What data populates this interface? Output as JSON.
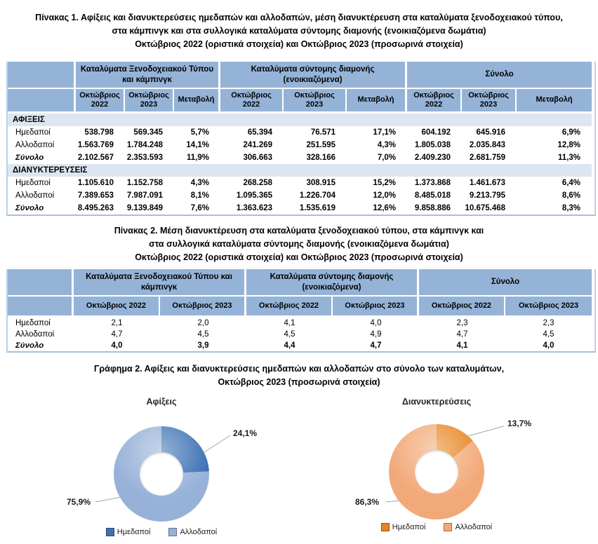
{
  "table1": {
    "title_lines": [
      "Πίνακας 1. Αφίξεις και διανυκτερεύσεις ημεδαπών και αλλοδαπών, μέση διανυκτέρευση στα καταλύματα ξενοδοχειακού τύπου,",
      "στα κάμπινγκ και στα συλλογικά καταλύματα σύντομης διαμονής (ενοικιαζόμενα δωμάτια)",
      "Οκτώβριος 2022 (οριστικά στοιχεία) και Οκτώβριος 2023 (προσωρινά στοιχεία)"
    ],
    "groups": [
      "Καταλύματα Ξενοδοχειακού Τύπου και κάμπινγκ",
      "Καταλύματα σύντομης διαμονής (ενοικιαζόμενα)",
      "Σύνολο"
    ],
    "subheaders": [
      "Οκτώβριος 2022",
      "Οκτώβριος 2023",
      "Μεταβολή"
    ],
    "sections": [
      {
        "label": "ΑΦΙΞΕΙΣ",
        "rows": [
          {
            "label": "Ημεδαποί",
            "total": false,
            "values": [
              "538.798",
              "569.345",
              "5,7%",
              "65.394",
              "76.571",
              "17,1%",
              "604.192",
              "645.916",
              "6,9%"
            ]
          },
          {
            "label": "Αλλοδαποί",
            "total": false,
            "values": [
              "1.563.769",
              "1.784.248",
              "14,1%",
              "241.269",
              "251.595",
              "4,3%",
              "1.805.038",
              "2.035.843",
              "12,8%"
            ]
          },
          {
            "label": "Σύνολο",
            "total": true,
            "values": [
              "2.102.567",
              "2.353.593",
              "11,9%",
              "306.663",
              "328.166",
              "7,0%",
              "2.409.230",
              "2.681.759",
              "11,3%"
            ]
          }
        ]
      },
      {
        "label": "ΔΙΑΝΥΚΤΕΡΕΥΣΕΙΣ",
        "rows": [
          {
            "label": "Ημεδαποί",
            "total": false,
            "values": [
              "1.105.610",
              "1.152.758",
              "4,3%",
              "268.258",
              "308.915",
              "15,2%",
              "1.373.868",
              "1.461.673",
              "6,4%"
            ]
          },
          {
            "label": "Αλλοδαποί",
            "total": false,
            "values": [
              "7.389.653",
              "7.987.091",
              "8,1%",
              "1.095.365",
              "1.226.704",
              "12,0%",
              "8.485.018",
              "9.213.795",
              "8,6%"
            ]
          },
          {
            "label": "Σύνολο",
            "total": true,
            "values": [
              "8.495.263",
              "9.139.849",
              "7,6%",
              "1.363.623",
              "1.535.619",
              "12,6%",
              "9.858.886",
              "10.675.468",
              "8,3%"
            ]
          }
        ]
      }
    ]
  },
  "table2": {
    "title_lines": [
      "Πίνακας 2. Μέση διανυκτέρευση στα καταλύματα ξενοδοχειακού τύπου, στα κάμπινγκ και",
      "στα συλλογικά καταλύματα σύντομης διαμονής (ενοικιαζόμενα δωμάτια)",
      "Οκτώβριος 2022 (οριστικά στοιχεία) και Οκτώβριος 2023 (προσωρινά στοιχεία)"
    ],
    "groups": [
      "Καταλύματα Ξενοδοχειακού Τύπου και κάμπινγκ",
      "Καταλύματα σύντομης διαμονής (ενοικιαζόμενα)",
      "Σύνολο"
    ],
    "subheaders": [
      "Οκτώβριος 2022",
      "Οκτώβριος 2023"
    ],
    "rows": [
      {
        "label": "Ημεδαποί",
        "total": false,
        "values": [
          "2,1",
          "2,0",
          "4,1",
          "4,0",
          "2,3",
          "2,3"
        ]
      },
      {
        "label": "Αλλοδαποί",
        "total": false,
        "values": [
          "4,7",
          "4,5",
          "4,5",
          "4,9",
          "4,7",
          "4,5"
        ]
      },
      {
        "label": "Σύνολο",
        "total": true,
        "values": [
          "4,0",
          "3,9",
          "4,4",
          "4,7",
          "4,1",
          "4,0"
        ]
      }
    ]
  },
  "chart_section": {
    "title_lines": [
      "Γράφημα 2. Αφίξεις και διανυκτερεύσεις ημεδαπών και αλλοδαπών στο σύνολο των καταλυμάτων,",
      "Οκτώβριος 2023 (προσωρινά στοιχεία)"
    ]
  },
  "chart_data": [
    {
      "type": "pie",
      "subtype": "donut",
      "title": "Αφίξεις",
      "labels": [
        "Ημεδαποί",
        "Αλλοδαποί"
      ],
      "values": [
        24.1,
        75.9
      ],
      "value_labels": [
        "24,1%",
        "75,9%"
      ],
      "colors": [
        "#3C72B4",
        "#97B1D8"
      ],
      "legend_position": "bottom"
    },
    {
      "type": "pie",
      "subtype": "donut",
      "title": "Διανυκτερεύσεις",
      "labels": [
        "Ημεδαποί",
        "Αλλοδαποί"
      ],
      "values": [
        13.7,
        86.3
      ],
      "value_labels": [
        "13,7%",
        "86,3%"
      ],
      "colors": [
        "#E8831F",
        "#F2A979"
      ],
      "legend_position": "bottom"
    }
  ]
}
